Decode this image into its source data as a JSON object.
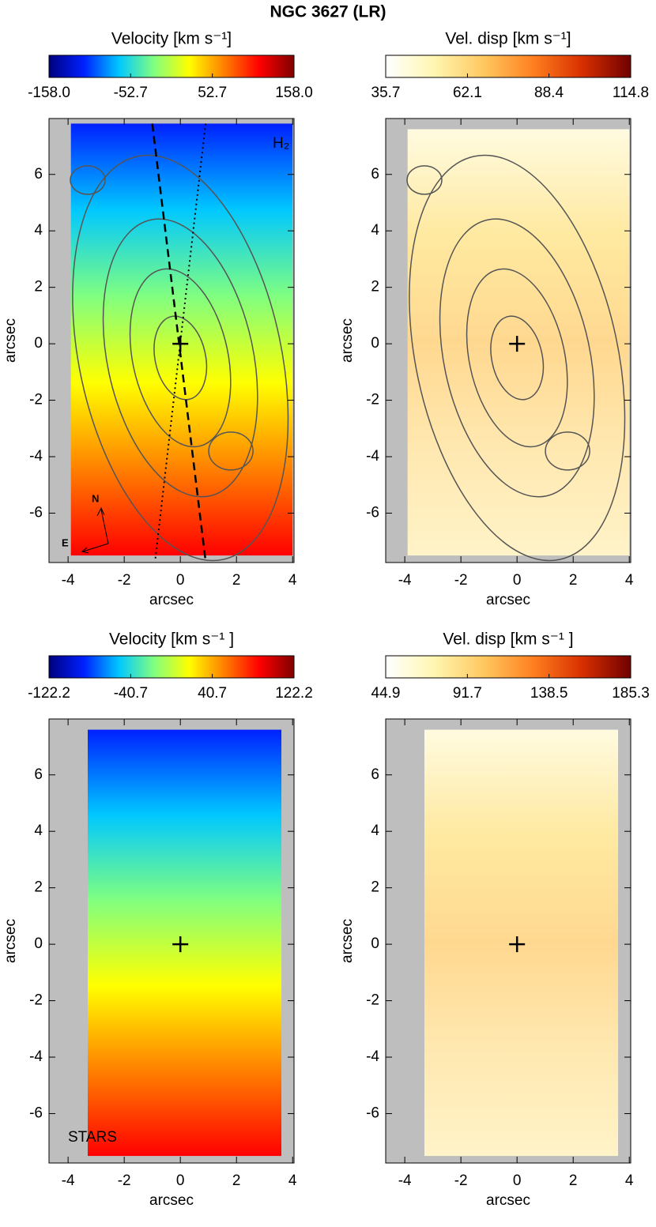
{
  "title": "NGC 3627 (LR)",
  "chart_data": [
    {
      "type": "map",
      "colorbar_label": "Velocity  [km s⁻¹]",
      "clim": [
        -158,
        158
      ],
      "cticks": [
        {
          "value": -158,
          "label": "-158.0"
        },
        -52.7,
        52.7,
        {
          "value": 158,
          "label": "158.0"
        }
      ],
      "colormap": [
        "#000080",
        "#0020ff",
        "#00c8ff",
        "#80ff80",
        "#ffff00",
        "#ff8000",
        "#ff0000",
        "#800000"
      ],
      "xlabel": "arcsec",
      "ylabel": "arcsec",
      "xlim": [
        -4.68,
        4.05
      ],
      "ylim": [
        -7.75,
        7.98
      ],
      "xticks": [
        -4,
        -2,
        0,
        2,
        4
      ],
      "yticks": [
        -6,
        -4,
        -2,
        0,
        2,
        4,
        6
      ],
      "annotations": [
        "H₂",
        "N",
        "E"
      ]
    },
    {
      "type": "map",
      "colorbar_label": "Vel. disp  [km s⁻¹]",
      "clim": [
        35.7,
        114.8
      ],
      "cticks": [
        35.7,
        62.1,
        88.4,
        114.8
      ],
      "colormap": [
        "#ffffff",
        "#fff6b0",
        "#ffc860",
        "#ff8020",
        "#d83000",
        "#700000"
      ],
      "xlabel": "arcsec",
      "ylabel": "arcsec",
      "xlim": [
        -4.68,
        4.05
      ],
      "ylim": [
        -7.75,
        7.98
      ],
      "xticks": [
        -4,
        -2,
        0,
        2,
        4
      ],
      "yticks": [
        -6,
        -4,
        -2,
        0,
        2,
        4,
        6
      ],
      "annotations": []
    },
    {
      "type": "map",
      "colorbar_label": "Velocity  [km s⁻¹ ]",
      "clim": [
        -122.2,
        122.2
      ],
      "cticks": [
        -122.2,
        -40.7,
        40.7,
        122.2
      ],
      "colormap": [
        "#000080",
        "#0020ff",
        "#00c8ff",
        "#80ff80",
        "#ffff00",
        "#ff8000",
        "#ff0000",
        "#800000"
      ],
      "xlabel": "arcsec",
      "ylabel": "arcsec",
      "xlim": [
        -4.68,
        4.05
      ],
      "ylim": [
        -7.75,
        7.98
      ],
      "xticks": [
        -4,
        -2,
        0,
        2,
        4
      ],
      "yticks": [
        -6,
        -4,
        -2,
        0,
        2,
        4,
        6
      ],
      "annotations": [
        "STARS"
      ]
    },
    {
      "type": "map",
      "colorbar_label": "Vel. disp  [km s⁻¹ ]",
      "clim": [
        44.9,
        185.3
      ],
      "cticks": [
        44.9,
        91.7,
        138.5,
        185.3
      ],
      "colormap": [
        "#ffffff",
        "#fff6b0",
        "#ffc860",
        "#ff8020",
        "#d83000",
        "#700000"
      ],
      "xlabel": "arcsec",
      "ylabel": "arcsec",
      "xlim": [
        -4.68,
        4.05
      ],
      "ylim": [
        -7.75,
        7.98
      ],
      "xticks": [
        -4,
        -2,
        0,
        2,
        4
      ],
      "yticks": [
        -6,
        -4,
        -2,
        0,
        2,
        4,
        6
      ],
      "annotations": []
    }
  ]
}
